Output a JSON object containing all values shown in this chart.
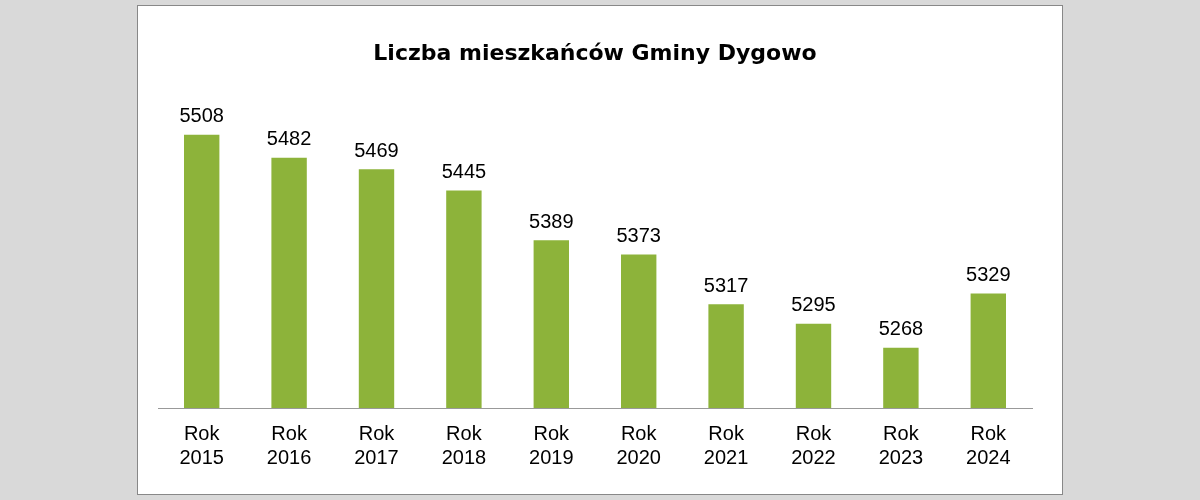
{
  "chart_data": {
    "type": "bar",
    "title": "Liczba mieszkańców Gminy Dygowo",
    "categories": [
      "Rok 2015",
      "Rok 2016",
      "Rok 2017",
      "Rok 2018",
      "Rok 2019",
      "Rok 2020",
      "Rok 2021",
      "Rok 2022",
      "Rok 2023",
      "Rok 2024"
    ],
    "values": [
      5508,
      5482,
      5469,
      5445,
      5389,
      5373,
      5317,
      5295,
      5268,
      5329
    ],
    "color": "#8db33a",
    "data_labels": true,
    "grid": false,
    "legend": false
  }
}
